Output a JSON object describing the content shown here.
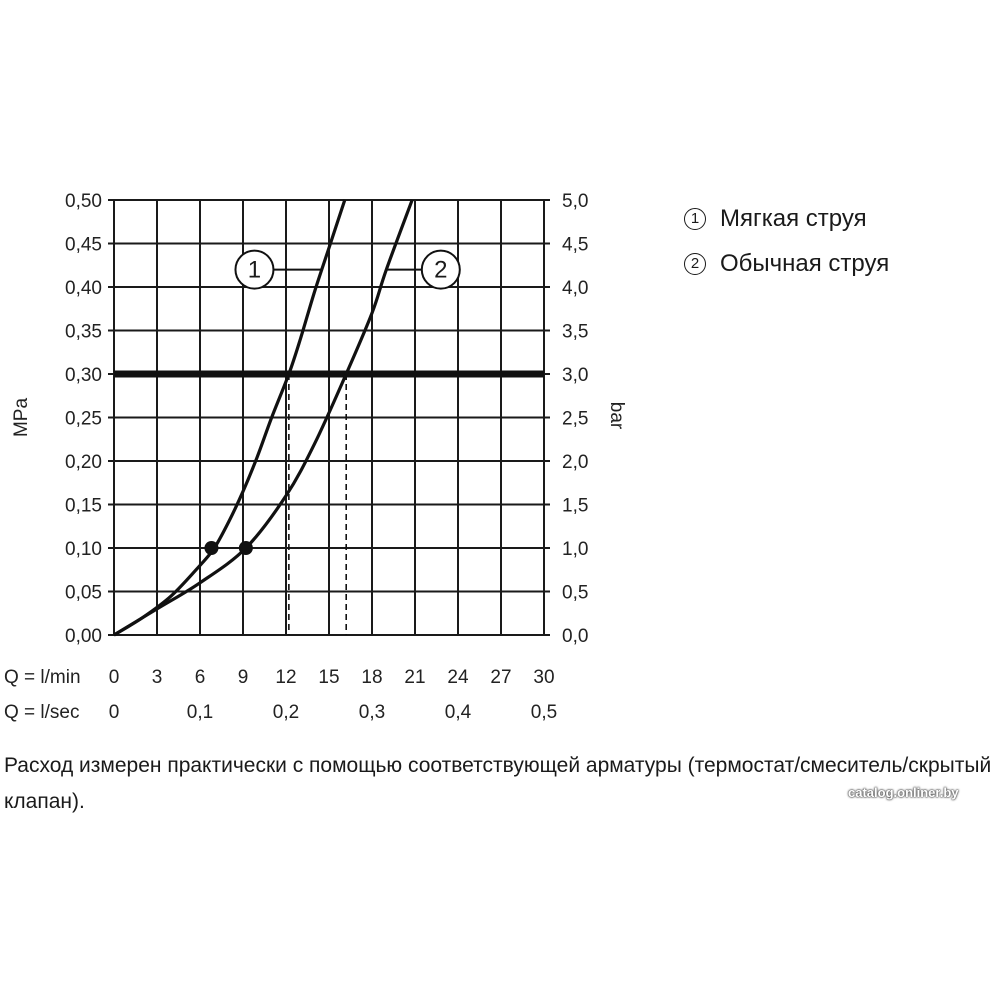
{
  "chart_data": {
    "type": "line",
    "y_left": {
      "label": "MPa",
      "range": [
        0,
        0.5
      ],
      "ticks": [
        "0,00",
        "0,05",
        "0,10",
        "0,15",
        "0,20",
        "0,25",
        "0,30",
        "0,35",
        "0,40",
        "0,45",
        "0,50"
      ]
    },
    "y_right": {
      "label": "bar",
      "range": [
        0,
        5
      ],
      "ticks": [
        "0,0",
        "0,5",
        "1,0",
        "1,5",
        "2,0",
        "2,5",
        "3,0",
        "3,5",
        "4,0",
        "4,5",
        "5,0"
      ]
    },
    "x_min": {
      "label": "Q = l/min",
      "range": [
        0,
        30
      ],
      "ticks": [
        "0",
        "3",
        "6",
        "9",
        "12",
        "15",
        "18",
        "21",
        "24",
        "27",
        "30"
      ]
    },
    "x_sec": {
      "label": "Q = l/sec",
      "ticks": [
        {
          "value": 0,
          "label": "0"
        },
        {
          "value": 0.1,
          "label": "0,1"
        },
        {
          "value": 0.2,
          "label": "0,2"
        },
        {
          "value": 0.3,
          "label": "0,3"
        },
        {
          "value": 0.4,
          "label": "0,4"
        },
        {
          "value": 0.5,
          "label": "0,5"
        }
      ]
    },
    "grid": true,
    "reference_line": {
      "y": 0.3
    },
    "series": [
      {
        "id": "1",
        "name": "Мягкая струя",
        "x": [
          0,
          2,
          4,
          6,
          7,
          8,
          9,
          10,
          11,
          12.2,
          13,
          14,
          15,
          16.1
        ],
        "y": [
          0,
          0.02,
          0.045,
          0.08,
          0.1,
          0.13,
          0.165,
          0.205,
          0.25,
          0.3,
          0.34,
          0.395,
          0.445,
          0.5
        ],
        "marker": {
          "x": 6.8,
          "y": 0.1
        },
        "dashed_drop_x": 12.2,
        "label_at": {
          "x": 9.8,
          "y": 0.42
        }
      },
      {
        "id": "2",
        "name": "Обычная струя",
        "x": [
          0,
          3,
          6,
          9.2,
          12,
          14,
          16.2,
          18,
          19,
          20.8
        ],
        "y": [
          0,
          0.03,
          0.06,
          0.1,
          0.16,
          0.22,
          0.3,
          0.37,
          0.42,
          0.5
        ],
        "marker": {
          "x": 9.2,
          "y": 0.1
        },
        "dashed_drop_x": 16.2,
        "label_at": {
          "x": 22.8,
          "y": 0.42
        }
      }
    ]
  },
  "legend": [
    {
      "num": "1",
      "label": "Мягкая струя"
    },
    {
      "num": "2",
      "label": "Обычная струя"
    }
  ],
  "note": "Расход измерен практически с помощью соответствующей арматуры (термостат/смеситель/скрытый клапан).",
  "watermark": "catalog.onliner.by"
}
